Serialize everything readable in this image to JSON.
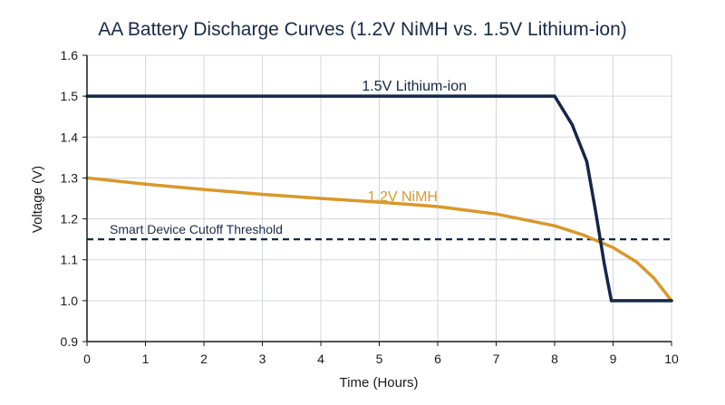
{
  "chart_data": {
    "type": "line",
    "title": "AA Battery Discharge Curves (1.2V NiMH vs. 1.5V Lithium-ion)",
    "xlabel": "Time (Hours)",
    "ylabel": "Voltage (V)",
    "xlim": [
      0,
      10
    ],
    "ylim": [
      0.9,
      1.6
    ],
    "x_ticks": [
      0,
      1,
      2,
      3,
      4,
      5,
      6,
      7,
      8,
      9,
      10
    ],
    "y_ticks": [
      0.9,
      1.0,
      1.1,
      1.2,
      1.3,
      1.4,
      1.5,
      1.6
    ],
    "y_tick_labels": [
      "0.9",
      "1.0",
      "1.1",
      "1.2",
      "1.3",
      "1.4",
      "1.5",
      "1.6"
    ],
    "grid": true,
    "series": [
      {
        "name": "1.5V Lithium-ion",
        "color": "#14264a",
        "points": [
          [
            0,
            1.5
          ],
          [
            8.0,
            1.5
          ],
          [
            8.3,
            1.43
          ],
          [
            8.55,
            1.34
          ],
          [
            8.7,
            1.22
          ],
          [
            8.85,
            1.09
          ],
          [
            8.97,
            1.0
          ],
          [
            10,
            1.0
          ]
        ]
      },
      {
        "name": "1.2V NiMH",
        "color": "#d9982a",
        "points": [
          [
            0,
            1.3
          ],
          [
            1,
            1.285
          ],
          [
            2,
            1.272
          ],
          [
            3,
            1.26
          ],
          [
            4,
            1.25
          ],
          [
            5,
            1.241
          ],
          [
            6,
            1.23
          ],
          [
            7,
            1.212
          ],
          [
            8,
            1.183
          ],
          [
            8.5,
            1.16
          ],
          [
            9,
            1.13
          ],
          [
            9.4,
            1.095
          ],
          [
            9.7,
            1.055
          ],
          [
            10,
            1.0
          ]
        ]
      }
    ],
    "threshold": {
      "label": "Smart Device Cutoff Threshold",
      "value": 1.15,
      "color": "#14264a"
    },
    "annotations": [
      {
        "text": "1.5V Lithium-ion",
        "x": 5.6,
        "y": 1.5
      },
      {
        "text": "1.2V NiMH",
        "x": 5.4,
        "y": 1.23
      }
    ]
  }
}
